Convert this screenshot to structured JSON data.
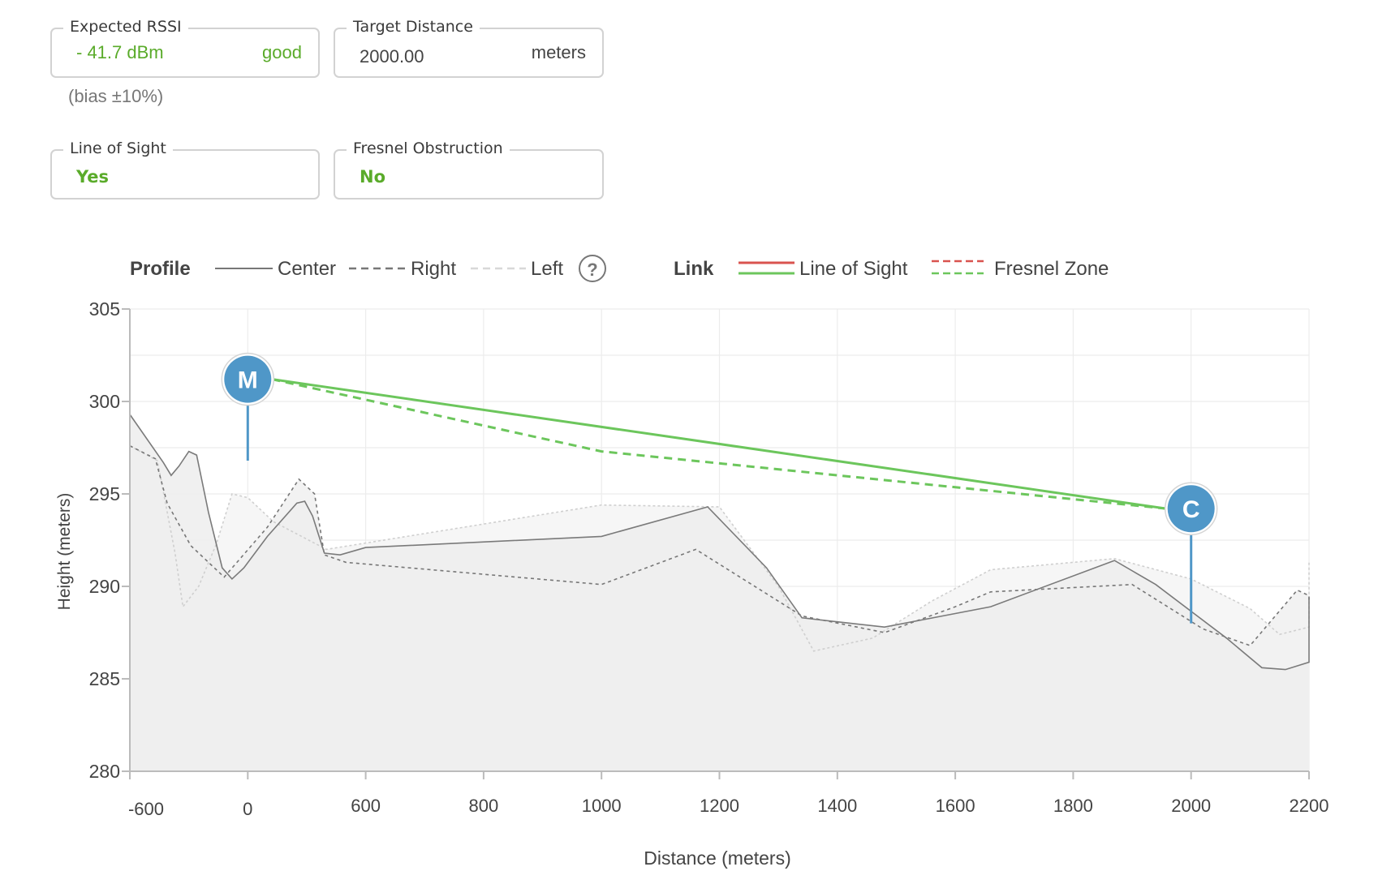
{
  "fields": {
    "expected_rssi": {
      "label": "Expected RSSI",
      "value": "- 41.7 dBm",
      "status": "good",
      "note": "(bias ±10%)"
    },
    "target_distance": {
      "label": "Target Distance",
      "value": "2000.00",
      "unit": "meters"
    },
    "line_of_sight": {
      "label": "Line of Sight",
      "value": "Yes"
    },
    "fresnel_obstruction": {
      "label": "Fresnel Obstruction",
      "value": "No"
    }
  },
  "legend": {
    "profile_title": "Profile",
    "center": "Center",
    "right": "Right",
    "left": "Left",
    "help": "?",
    "link_title": "Link",
    "line_of_sight": "Line of Sight",
    "fresnel_zone": "Fresnel Zone"
  },
  "colors": {
    "green": "#5aab2a",
    "los_green": "#6cc65c",
    "los_red": "#d9534f",
    "marker_blue": "#4f97c8",
    "terrain": "#777777"
  },
  "markers": [
    {
      "label": "M",
      "x": 0,
      "y": 301.2,
      "ground": 296.8
    },
    {
      "label": "C",
      "x": 2000,
      "y": 294.2,
      "ground": 288.0
    }
  ],
  "chart_data": {
    "type": "line",
    "xlabel": "Distance (meters)",
    "ylabel": "Height (meters)",
    "x_ticks": [
      -600,
      0,
      600,
      800,
      1000,
      1200,
      1400,
      1600,
      1800,
      2000,
      2200
    ],
    "y_ticks": [
      305,
      300,
      295,
      290,
      285,
      280
    ],
    "ylim": [
      280,
      305
    ],
    "grid": true,
    "series": [
      {
        "name": "Center",
        "style": "solid",
        "points": [
          [
            -600,
            299.3
          ],
          [
            -430,
            296.7
          ],
          [
            -390,
            296
          ],
          [
            -350,
            296.5
          ],
          [
            -300,
            297.3
          ],
          [
            -260,
            297.1
          ],
          [
            -200,
            294
          ],
          [
            -130,
            291
          ],
          [
            -80,
            290.4
          ],
          [
            -20,
            291
          ],
          [
            100,
            292.7
          ],
          [
            250,
            294.5
          ],
          [
            290,
            294.6
          ],
          [
            330,
            293.8
          ],
          [
            390,
            291.8
          ],
          [
            470,
            291.7
          ],
          [
            600,
            292.1
          ],
          [
            1000,
            292.7
          ],
          [
            1180,
            294.3
          ],
          [
            1280,
            291
          ],
          [
            1340,
            288.3
          ],
          [
            1480,
            287.8
          ],
          [
            1660,
            288.9
          ],
          [
            1870,
            291.4
          ],
          [
            1940,
            290.1
          ],
          [
            2060,
            287.2
          ],
          [
            2120,
            285.6
          ],
          [
            2160,
            285.5
          ],
          [
            2230,
            285.9
          ],
          [
            2370,
            289.4
          ]
        ]
      },
      {
        "name": "Right",
        "style": "dashed",
        "points": [
          [
            -600,
            297.6
          ],
          [
            -470,
            296.9
          ],
          [
            -410,
            294.5
          ],
          [
            -290,
            292.2
          ],
          [
            -120,
            290.5
          ],
          [
            100,
            293.2
          ],
          [
            260,
            295.8
          ],
          [
            340,
            295
          ],
          [
            390,
            291.7
          ],
          [
            500,
            291.3
          ],
          [
            1000,
            290.1
          ],
          [
            1160,
            292
          ],
          [
            1340,
            288.4
          ],
          [
            1480,
            287.5
          ],
          [
            1600,
            288.9
          ],
          [
            1660,
            289.7
          ],
          [
            1900,
            290.1
          ],
          [
            2020,
            287.7
          ],
          [
            2100,
            286.8
          ],
          [
            2180,
            289.8
          ],
          [
            2270,
            289.5
          ],
          [
            2370,
            289.2
          ]
        ]
      },
      {
        "name": "Left",
        "style": "dashed-light",
        "points": [
          [
            -600,
            297.6
          ],
          [
            -460,
            296.8
          ],
          [
            -370,
            291.8
          ],
          [
            -330,
            288.9
          ],
          [
            -250,
            290
          ],
          [
            -160,
            292.3
          ],
          [
            -80,
            295
          ],
          [
            0,
            294.8
          ],
          [
            130,
            293.5
          ],
          [
            400,
            292
          ],
          [
            1000,
            294.4
          ],
          [
            1200,
            294.3
          ],
          [
            1300,
            290
          ],
          [
            1360,
            286.5
          ],
          [
            1460,
            287.2
          ],
          [
            1560,
            289.2
          ],
          [
            1660,
            290.9
          ],
          [
            1870,
            291.5
          ],
          [
            2000,
            290.4
          ],
          [
            2100,
            288.8
          ],
          [
            2150,
            287.4
          ],
          [
            2200,
            287.8
          ],
          [
            2260,
            288.7
          ],
          [
            2370,
            291.3
          ]
        ]
      }
    ],
    "link": {
      "line_of_sight": [
        [
          0,
          301.2
        ],
        [
          2000,
          294.2
        ]
      ],
      "fresnel_zone": [
        [
          0,
          301.2
        ],
        [
          1000,
          297.3
        ],
        [
          2000,
          294.2
        ]
      ]
    }
  }
}
